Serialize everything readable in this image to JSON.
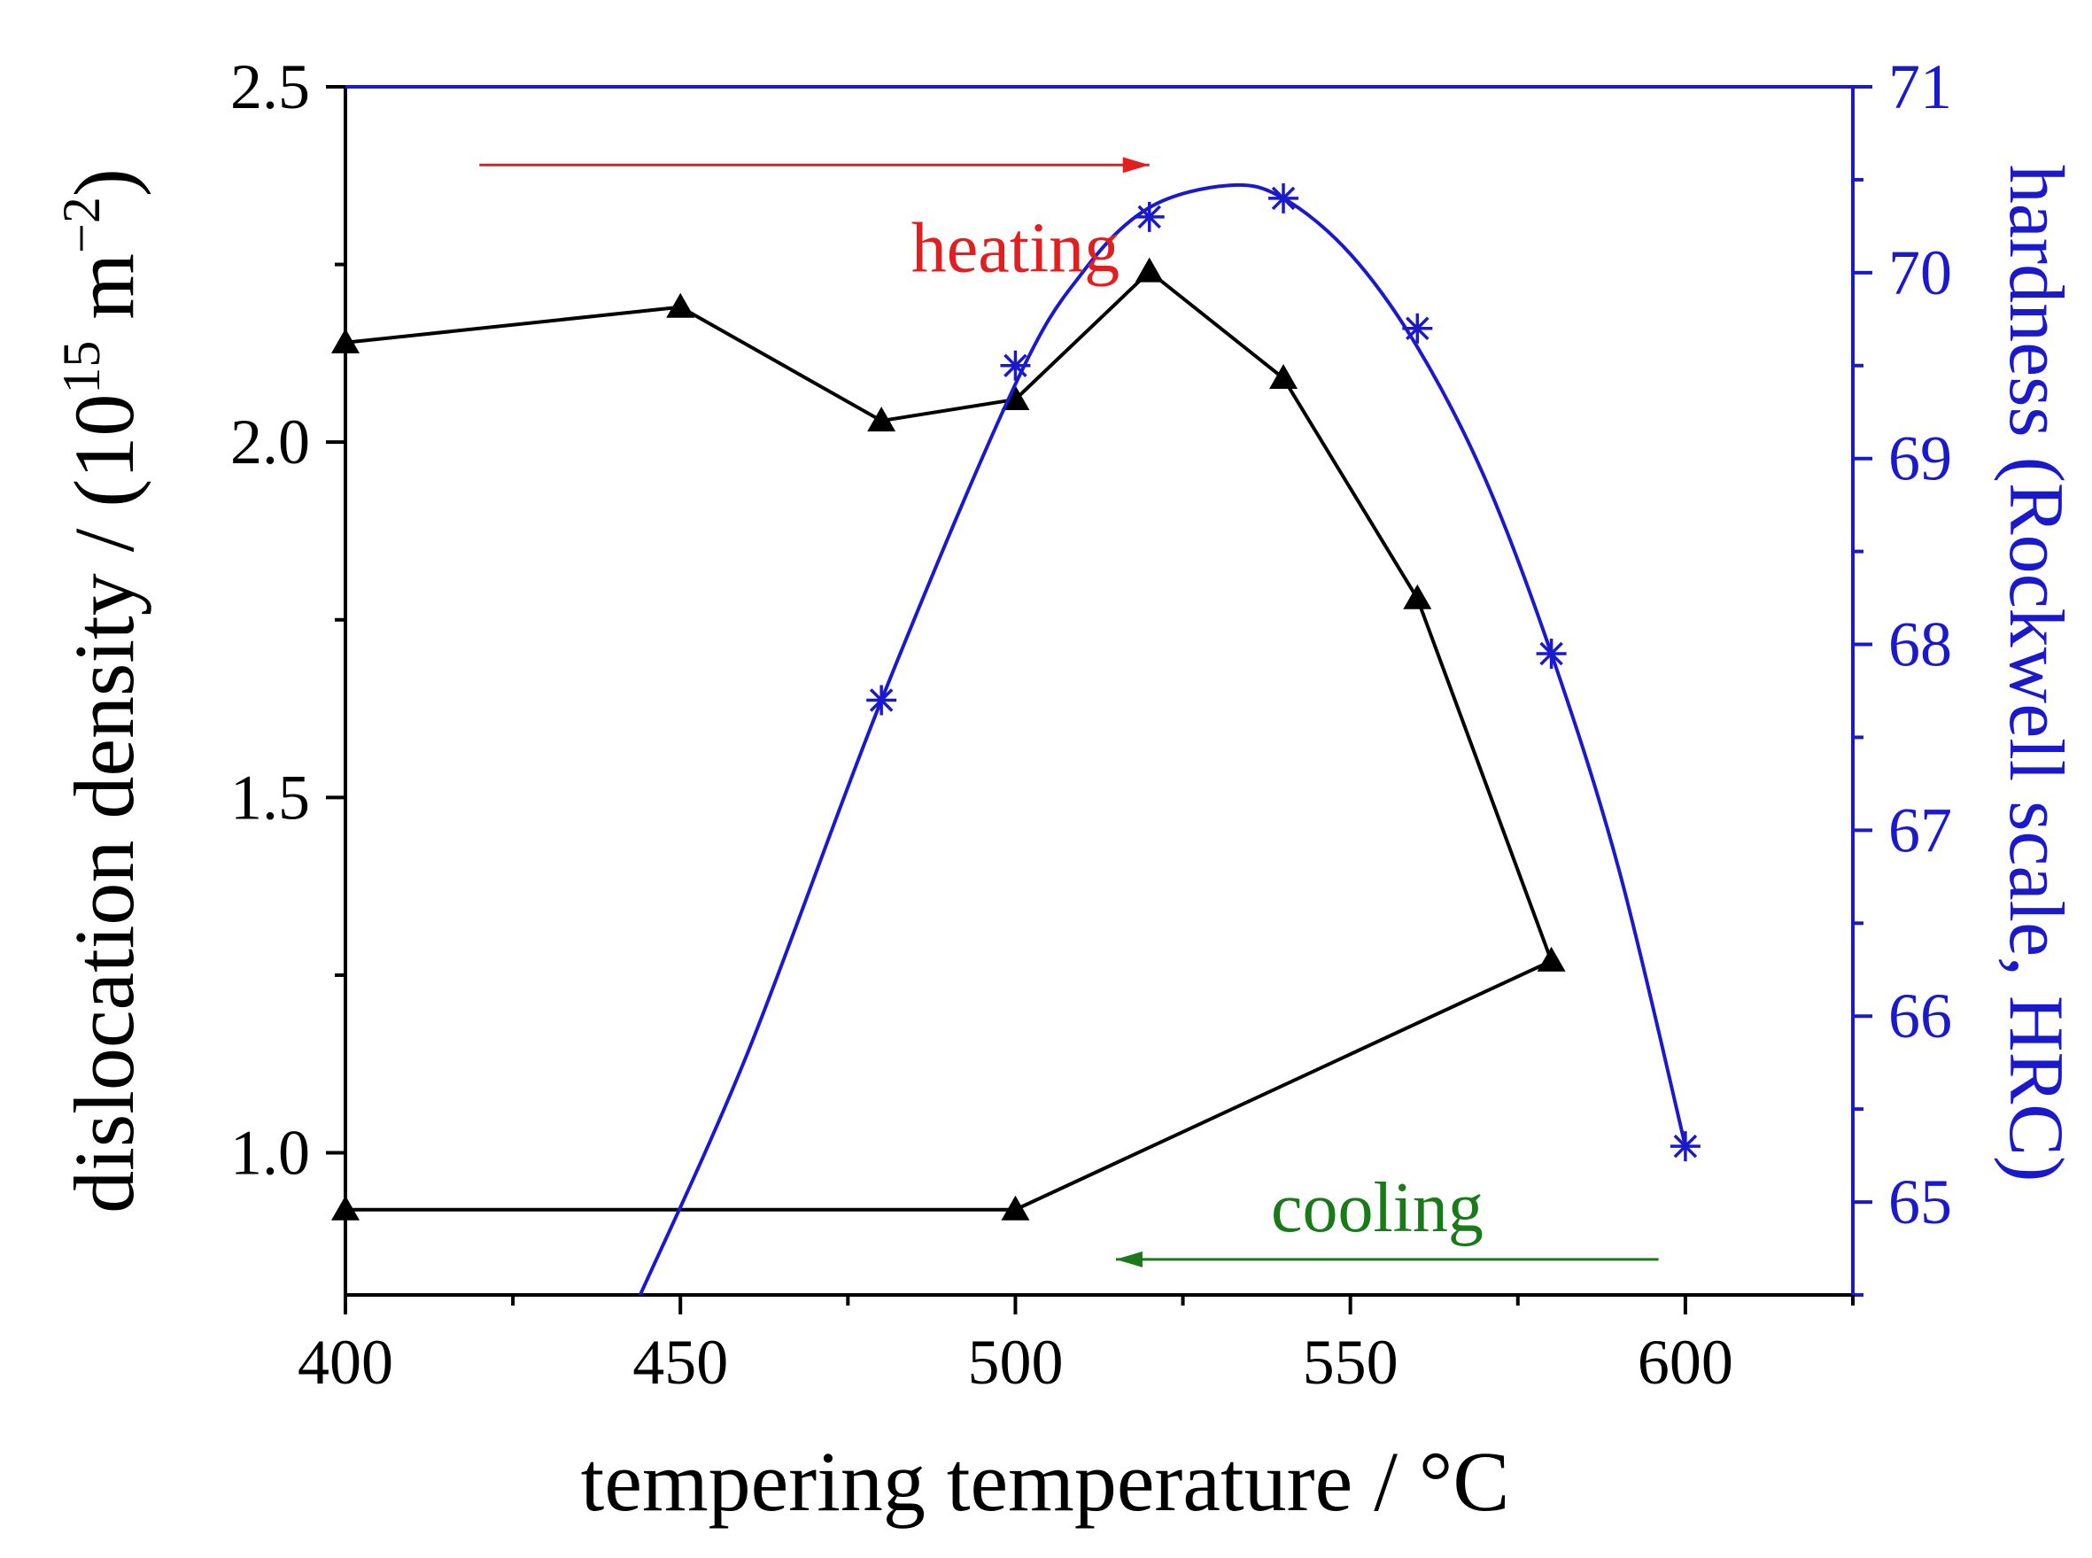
{
  "chart_data": {
    "type": "line",
    "x": {
      "label": "tempering temperature / °C",
      "range": [
        400,
        625
      ],
      "ticks": [
        400,
        450,
        500,
        550,
        600
      ],
      "tick_labels": [
        "400",
        "450",
        "500",
        "550",
        "600"
      ]
    },
    "y_left": {
      "label_main": "dislocation density / (10",
      "label_exp1": "15",
      "label_mid": " m",
      "label_exp2": "−2",
      "label_end": ")",
      "range": [
        0.8,
        2.5
      ],
      "ticks": [
        1.0,
        1.5,
        2.0,
        2.5
      ],
      "tick_labels": [
        "1.0",
        "1.5",
        "2.0",
        "2.5"
      ],
      "color": "#000000"
    },
    "y_right": {
      "label": "hardness (Rockwell scale, HRC)",
      "range": [
        64.5,
        71
      ],
      "ticks": [
        65,
        66,
        67,
        68,
        69,
        70,
        71
      ],
      "tick_labels": [
        "65",
        "66",
        "67",
        "68",
        "69",
        "70",
        "71"
      ],
      "color": "#1a1acc"
    },
    "series": [
      {
        "name": "dislocation density",
        "axis": "left",
        "marker": "triangle",
        "color": "#000000",
        "points": [
          [
            400,
            2.14
          ],
          [
            450,
            2.19
          ],
          [
            480,
            2.03
          ],
          [
            500,
            2.06
          ],
          [
            520,
            2.24
          ],
          [
            540,
            2.09
          ],
          [
            560,
            1.78
          ],
          [
            580,
            1.27
          ],
          [
            500,
            0.92
          ],
          [
            400,
            0.92
          ]
        ]
      },
      {
        "name": "hardness",
        "axis": "right",
        "marker": "asterisk",
        "color": "#1a1acc",
        "points": [
          [
            480,
            67.7
          ],
          [
            500,
            69.5
          ],
          [
            520,
            70.3
          ],
          [
            540,
            70.4
          ],
          [
            560,
            69.7
          ],
          [
            580,
            67.95
          ],
          [
            600,
            65.3
          ]
        ],
        "fit_curve": [
          [
            444,
            64.5
          ],
          [
            460,
            65.8
          ],
          [
            480,
            67.7
          ],
          [
            500,
            69.4
          ],
          [
            510,
            70.0
          ],
          [
            520,
            70.35
          ],
          [
            532,
            70.47
          ],
          [
            540,
            70.4
          ],
          [
            550,
            70.1
          ],
          [
            560,
            69.6
          ],
          [
            570,
            68.9
          ],
          [
            580,
            67.95
          ],
          [
            590,
            66.8
          ],
          [
            600,
            65.3
          ]
        ]
      }
    ],
    "annotations": [
      {
        "text": "heating",
        "color": "#e02020",
        "arrow": "right",
        "arrow_from": 420,
        "arrow_to": 520,
        "arrow_y": 2.39,
        "text_x": 500,
        "text_y": 2.24
      },
      {
        "text": "cooling",
        "color": "#1a7a1a",
        "arrow": "left",
        "arrow_from": 596,
        "arrow_to": 515,
        "arrow_y": 0.85,
        "text_x": 554,
        "text_y": 0.89
      }
    ]
  }
}
